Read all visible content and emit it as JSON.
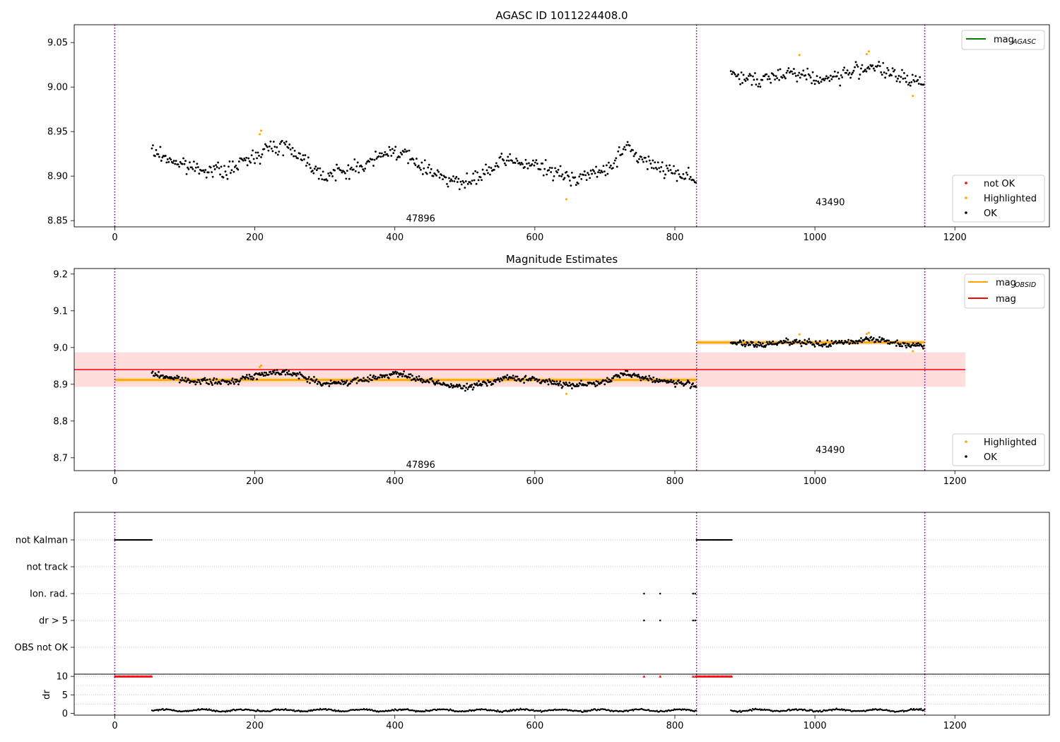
{
  "figure": {
    "title1": "AGASC ID 1011224408.0",
    "title2": "Magnitude Estimates"
  },
  "colors": {
    "ok": "#000000",
    "highlighted": "#ffa500",
    "not_ok": "#ff0000",
    "mag_agasc": "#008000",
    "mag_obsid": "#ffa500",
    "mag": "#ff0000",
    "mag_band": "#ffdddd",
    "obsid_line": "#7f007f"
  },
  "chart_data": [
    {
      "type": "scatter",
      "panel": "top",
      "title": "AGASC ID 1011224408.0",
      "xlim": [
        -58,
        1335
      ],
      "ylim": [
        8.843,
        9.07
      ],
      "x_ticks": [
        0,
        200,
        400,
        600,
        800,
        1000,
        1200
      ],
      "y_ticks": [
        "8.85",
        "8.90",
        "8.95",
        "9.00",
        "9.05"
      ],
      "obsid_boundaries": [
        0,
        831,
        1157
      ],
      "obsid_labels": [
        {
          "text": "47896",
          "x": 415,
          "y": 8.853
        },
        {
          "text": "43490",
          "x": 1000,
          "y": 8.871
        }
      ],
      "legend_lines": [
        {
          "label": "mag",
          "sub": "AGASC",
          "color": "#008000"
        }
      ],
      "legend_points": [
        "not OK",
        "Highlighted",
        "OK"
      ],
      "legend_placement": [
        "upper right",
        "lower right"
      ],
      "series": [
        {
          "name": "OK",
          "segments": [
            {
              "x0": 53,
              "x1": 831,
              "waypoints": [
                [
                  53,
                  8.928
                ],
                [
                  100,
                  8.911
                ],
                [
                  160,
                  8.905
                ],
                [
                  215,
                  8.93
                ],
                [
                  245,
                  8.935
                ],
                [
                  300,
                  8.9
                ],
                [
                  350,
                  8.91
                ],
                [
                  400,
                  8.93
                ],
                [
                  440,
                  8.91
                ],
                [
                  500,
                  8.89
                ],
                [
                  560,
                  8.918
                ],
                [
                  600,
                  8.912
                ],
                [
                  650,
                  8.898
                ],
                [
                  700,
                  8.905
                ],
                [
                  730,
                  8.932
                ],
                [
                  760,
                  8.915
                ],
                [
                  831,
                  8.897
                ]
              ],
              "noise": 0.008
            },
            {
              "x0": 880,
              "x1": 1157,
              "waypoints": [
                [
                  880,
                  9.015
                ],
                [
                  920,
                  9.005
                ],
                [
                  960,
                  9.018
                ],
                [
                  1010,
                  9.008
                ],
                [
                  1060,
                  9.018
                ],
                [
                  1080,
                  9.025
                ],
                [
                  1120,
                  9.01
                ],
                [
                  1157,
                  9.005
                ]
              ],
              "noise": 0.008
            }
          ]
        },
        {
          "name": "Highlighted",
          "points": [
            [
              207,
              8.947
            ],
            [
              209,
              8.951
            ],
            [
              645,
              8.874
            ],
            [
              978,
              9.036
            ],
            [
              1074,
              9.037
            ],
            [
              1077,
              9.04
            ],
            [
              1140,
              8.99
            ]
          ]
        },
        {
          "name": "not OK",
          "points": []
        }
      ]
    },
    {
      "type": "scatter",
      "panel": "middle",
      "title": "Magnitude Estimates",
      "xlim": [
        -58,
        1335
      ],
      "ylim": [
        8.665,
        9.215
      ],
      "x_ticks": [
        0,
        200,
        400,
        600,
        800,
        1000,
        1200
      ],
      "y_ticks": [
        "8.7",
        "8.8",
        "8.9",
        "9.0",
        "9.1",
        "9.2"
      ],
      "obsid_boundaries": [
        0,
        831,
        1157
      ],
      "obsid_labels": [
        {
          "text": "47896",
          "x": 415,
          "y": 8.682
        },
        {
          "text": "43490",
          "x": 1000,
          "y": 8.723
        }
      ],
      "mag": {
        "value": 8.94,
        "band": [
          8.893,
          8.987
        ],
        "x_range": [
          -58,
          1215
        ]
      },
      "mag_obsid": [
        {
          "x0": 0,
          "x1": 831,
          "value": 8.912,
          "band": [
            8.905,
            8.919
          ]
        },
        {
          "x0": 831,
          "x1": 1157,
          "value": 9.014,
          "band": [
            9.008,
            9.02
          ]
        }
      ],
      "legend_lines": [
        {
          "label": "mag",
          "sub": "OBSID",
          "color": "#ffa500"
        },
        {
          "label": "mag",
          "sub": "",
          "color": "#ff0000"
        }
      ],
      "legend_points": [
        "Highlighted",
        "OK"
      ],
      "legend_placement": [
        "upper right",
        "lower right"
      ]
    },
    {
      "type": "scatter",
      "panel": "flags",
      "xlim": [
        -58,
        1335
      ],
      "x_ticks": [
        0,
        200,
        400,
        600,
        800,
        1000,
        1200
      ],
      "categories": [
        "not Kalman",
        "not track",
        "Ion. rad.",
        "dr > 5",
        "OBS not OK"
      ],
      "obsid_boundaries": [
        0,
        831,
        1157
      ],
      "flag_ranges": [
        {
          "category": "not Kalman",
          "x0": 0,
          "x1": 53
        },
        {
          "category": "not Kalman",
          "x0": 831,
          "x1": 882
        }
      ],
      "flag_points": [
        {
          "category": "Ion. rad.",
          "x": [
            756,
            779,
            826,
            829
          ]
        },
        {
          "category": "dr > 5",
          "x": [
            756,
            779,
            826,
            829
          ]
        }
      ]
    },
    {
      "type": "scatter",
      "panel": "dr",
      "ylabel": "dr",
      "xlim": [
        -58,
        1335
      ],
      "ylim": [
        -0.5,
        10.6
      ],
      "y_ticks": [
        "0",
        "5",
        "10"
      ],
      "x_ticks": [
        0,
        200,
        400,
        600,
        800,
        1000,
        1200
      ],
      "obsid_boundaries": [
        0,
        831,
        1157
      ],
      "clipped_value": 10,
      "clipped_ranges": [
        [
          0,
          53
        ],
        [
          831,
          882
        ]
      ],
      "clipped_points": [
        756,
        779,
        826,
        829
      ],
      "dr_segments": [
        {
          "x0": 53,
          "x1": 831,
          "mean": 0.8,
          "spread": 0.35
        },
        {
          "x0": 880,
          "x1": 1157,
          "mean": 0.8,
          "spread": 0.35
        }
      ]
    }
  ]
}
